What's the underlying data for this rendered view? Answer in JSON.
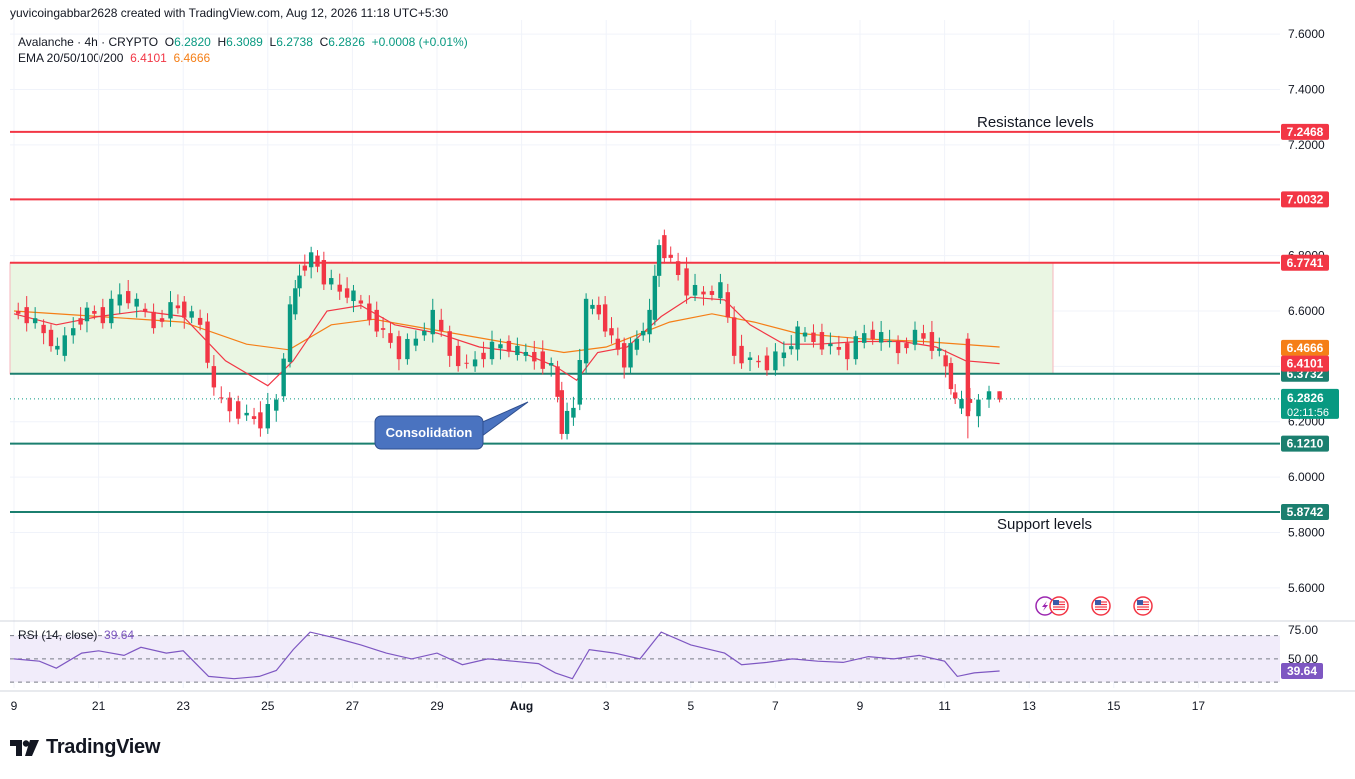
{
  "header": {
    "credit": "yuvicoingabbar2628 created with TradingView.com, Aug 12, 2026 11:18 UTC+5:30"
  },
  "legend": {
    "symbol": "Avalanche · 4h · CRYPTO",
    "o_label": "O",
    "o": "6.2820",
    "h_label": "H",
    "h": "6.3089",
    "l_label": "L",
    "l": "6.2738",
    "c_label": "C",
    "c": "6.2826",
    "change": "+0.0008 (+0.01%)",
    "ema_label": "EMA 20/50/100/200",
    "ema20": "6.4101",
    "ema50": "6.4666"
  },
  "rsi_legend": {
    "label": "RSI (14, close)",
    "value": "39.64"
  },
  "brand": {
    "name": "TradingView"
  },
  "annotations": {
    "resistance": "Resistance levels",
    "support": "Support levels",
    "consolidation": "Consolidation"
  },
  "colors": {
    "up": "#089981",
    "down": "#f23645",
    "ema20": "#f23645",
    "ema50": "#f57f17",
    "resistance": "#f23645",
    "support": "#1b7f6f",
    "rsi": "#7e57c2",
    "callout": "#4a73c0",
    "zone": "#eaf6e3"
  },
  "chart_data": {
    "type": "candlestick",
    "price_axis": {
      "ticks": [
        5.6,
        5.8,
        6.0,
        6.2,
        6.4,
        6.6,
        6.8,
        7.2,
        7.4,
        7.6
      ],
      "tick_labels": [
        "5.6000",
        "5.8000",
        "6.0000",
        "6.2000",
        "6.4000",
        "6.6000",
        "6.8000",
        "7.2000",
        "7.4000",
        "7.6000"
      ],
      "range": [
        5.52,
        7.68
      ]
    },
    "time_axis": {
      "labels": [
        "9",
        "21",
        "23",
        "25",
        "27",
        "29",
        "Aug",
        "3",
        "5",
        "7",
        "9",
        "11",
        "13",
        "15",
        "17"
      ],
      "positions": [
        19,
        21,
        23,
        25,
        27,
        29,
        31,
        33,
        35,
        37,
        39,
        41,
        43,
        45,
        47
      ],
      "bold": [
        "Aug"
      ]
    },
    "horizontal_levels": [
      {
        "price": 7.2468,
        "label": "7.2468",
        "kind": "resistance"
      },
      {
        "price": 7.0032,
        "label": "7.0032",
        "kind": "resistance"
      },
      {
        "price": 6.7741,
        "label": "6.7741",
        "kind": "resistance"
      },
      {
        "price": 6.3732,
        "label": "6.3732",
        "kind": "support"
      },
      {
        "price": 6.121,
        "label": "6.1210",
        "kind": "support"
      },
      {
        "price": 5.8742,
        "label": "5.8742",
        "kind": "support"
      }
    ],
    "consolidation_zone": {
      "top": 6.7741,
      "bottom": 6.3732
    },
    "price_badges": [
      {
        "price": 6.4666,
        "label": "6.4666",
        "series": "EMA 50"
      },
      {
        "price": 6.4101,
        "label": "6.4101",
        "series": "EMA 20"
      },
      {
        "price": 6.2826,
        "label": "6.2826",
        "countdown": "02:11:56",
        "series": "last"
      }
    ],
    "close_path": [
      [
        19.0,
        6.6
      ],
      [
        19.4,
        6.58
      ],
      [
        19.8,
        6.52
      ],
      [
        20.1,
        6.45
      ],
      [
        20.5,
        6.55
      ],
      [
        20.8,
        6.6
      ],
      [
        21.2,
        6.58
      ],
      [
        21.6,
        6.66
      ],
      [
        22.0,
        6.62
      ],
      [
        22.4,
        6.55
      ],
      [
        22.8,
        6.62
      ],
      [
        23.1,
        6.6
      ],
      [
        23.5,
        6.55
      ],
      [
        23.8,
        6.3
      ],
      [
        24.2,
        6.25
      ],
      [
        24.6,
        6.22
      ],
      [
        24.9,
        6.2
      ],
      [
        25.3,
        6.28
      ],
      [
        25.6,
        6.6
      ],
      [
        25.8,
        6.74
      ],
      [
        26.1,
        6.8
      ],
      [
        26.4,
        6.72
      ],
      [
        26.8,
        6.67
      ],
      [
        27.1,
        6.65
      ],
      [
        27.5,
        6.58
      ],
      [
        27.8,
        6.52
      ],
      [
        28.2,
        6.45
      ],
      [
        28.6,
        6.5
      ],
      [
        29.0,
        6.58
      ],
      [
        29.4,
        6.45
      ],
      [
        29.8,
        6.4
      ],
      [
        30.2,
        6.45
      ],
      [
        30.6,
        6.48
      ],
      [
        31.0,
        6.45
      ],
      [
        31.4,
        6.43
      ],
      [
        31.8,
        6.4
      ],
      [
        32.0,
        6.18
      ],
      [
        32.3,
        6.25
      ],
      [
        32.6,
        6.62
      ],
      [
        32.9,
        6.6
      ],
      [
        33.2,
        6.5
      ],
      [
        33.5,
        6.42
      ],
      [
        33.8,
        6.5
      ],
      [
        34.1,
        6.58
      ],
      [
        34.3,
        6.85
      ],
      [
        34.6,
        6.78
      ],
      [
        35.0,
        6.68
      ],
      [
        35.4,
        6.66
      ],
      [
        35.8,
        6.68
      ],
      [
        36.1,
        6.45
      ],
      [
        36.5,
        6.42
      ],
      [
        36.9,
        6.41
      ],
      [
        37.3,
        6.45
      ],
      [
        37.6,
        6.52
      ],
      [
        38.0,
        6.5
      ],
      [
        38.4,
        6.47
      ],
      [
        38.8,
        6.45
      ],
      [
        39.2,
        6.52
      ],
      [
        39.6,
        6.5
      ],
      [
        40.0,
        6.46
      ],
      [
        40.4,
        6.52
      ],
      [
        40.8,
        6.48
      ],
      [
        41.1,
        6.4
      ],
      [
        41.3,
        6.26
      ],
      [
        41.7,
        6.28
      ]
    ],
    "ema20": [
      [
        19.0,
        6.59
      ],
      [
        20.0,
        6.55
      ],
      [
        21.0,
        6.58
      ],
      [
        22.0,
        6.6
      ],
      [
        23.0,
        6.58
      ],
      [
        24.0,
        6.42
      ],
      [
        25.0,
        6.33
      ],
      [
        25.6,
        6.42
      ],
      [
        26.4,
        6.6
      ],
      [
        27.2,
        6.62
      ],
      [
        28.0,
        6.55
      ],
      [
        29.0,
        6.52
      ],
      [
        30.0,
        6.47
      ],
      [
        31.0,
        6.45
      ],
      [
        31.8,
        6.4
      ],
      [
        32.3,
        6.35
      ],
      [
        32.8,
        6.45
      ],
      [
        33.5,
        6.47
      ],
      [
        34.3,
        6.58
      ],
      [
        35.0,
        6.65
      ],
      [
        35.8,
        6.64
      ],
      [
        36.4,
        6.55
      ],
      [
        37.2,
        6.48
      ],
      [
        38.0,
        6.48
      ],
      [
        39.0,
        6.49
      ],
      [
        40.0,
        6.49
      ],
      [
        40.8,
        6.47
      ],
      [
        41.5,
        6.42
      ],
      [
        42.3,
        6.41
      ]
    ],
    "ema50": [
      [
        19.0,
        6.6
      ],
      [
        21.0,
        6.58
      ],
      [
        23.0,
        6.56
      ],
      [
        24.5,
        6.48
      ],
      [
        25.5,
        6.46
      ],
      [
        26.5,
        6.55
      ],
      [
        27.5,
        6.57
      ],
      [
        29.0,
        6.53
      ],
      [
        30.5,
        6.49
      ],
      [
        32.0,
        6.45
      ],
      [
        33.0,
        6.47
      ],
      [
        34.5,
        6.56
      ],
      [
        35.5,
        6.59
      ],
      [
        36.5,
        6.56
      ],
      [
        37.5,
        6.52
      ],
      [
        39.0,
        6.5
      ],
      [
        40.5,
        6.49
      ],
      [
        42.3,
        6.47
      ]
    ],
    "last_candles": [
      {
        "t": 41.55,
        "o": 6.5,
        "h": 6.52,
        "l": 6.14,
        "c": 6.22
      },
      {
        "t": 41.8,
        "o": 6.22,
        "h": 6.3,
        "l": 6.18,
        "c": 6.28
      },
      {
        "t": 42.05,
        "o": 6.28,
        "h": 6.33,
        "l": 6.25,
        "c": 6.31
      },
      {
        "t": 42.3,
        "o": 6.31,
        "h": 6.31,
        "l": 6.27,
        "c": 6.28
      }
    ],
    "rsi": {
      "name": "RSI (14, close)",
      "ticks": [
        75,
        50
      ],
      "tick_labels": [
        "75.00",
        "50.00"
      ],
      "band": [
        30,
        70
      ],
      "range": [
        25,
        80
      ],
      "last": "39.64",
      "values": [
        [
          19.0,
          50
        ],
        [
          19.6,
          48
        ],
        [
          20.0,
          42
        ],
        [
          20.6,
          55
        ],
        [
          21.0,
          57
        ],
        [
          21.6,
          53
        ],
        [
          22.0,
          60
        ],
        [
          22.6,
          55
        ],
        [
          23.0,
          57
        ],
        [
          23.6,
          35
        ],
        [
          24.2,
          33
        ],
        [
          24.8,
          35
        ],
        [
          25.2,
          40
        ],
        [
          25.6,
          58
        ],
        [
          26.0,
          73
        ],
        [
          26.6,
          68
        ],
        [
          27.2,
          62
        ],
        [
          27.8,
          55
        ],
        [
          28.4,
          50
        ],
        [
          29.0,
          55
        ],
        [
          29.6,
          45
        ],
        [
          30.2,
          50
        ],
        [
          30.8,
          48
        ],
        [
          31.4,
          46
        ],
        [
          31.8,
          38
        ],
        [
          32.2,
          33
        ],
        [
          32.6,
          58
        ],
        [
          33.2,
          55
        ],
        [
          33.8,
          50
        ],
        [
          34.3,
          73
        ],
        [
          35.0,
          62
        ],
        [
          35.8,
          55
        ],
        [
          36.2,
          45
        ],
        [
          36.8,
          47
        ],
        [
          37.4,
          50
        ],
        [
          38.0,
          48
        ],
        [
          38.6,
          47
        ],
        [
          39.2,
          52
        ],
        [
          39.8,
          50
        ],
        [
          40.4,
          53
        ],
        [
          41.0,
          48
        ],
        [
          41.3,
          35
        ],
        [
          41.7,
          38
        ],
        [
          42.3,
          39.64
        ]
      ]
    }
  }
}
